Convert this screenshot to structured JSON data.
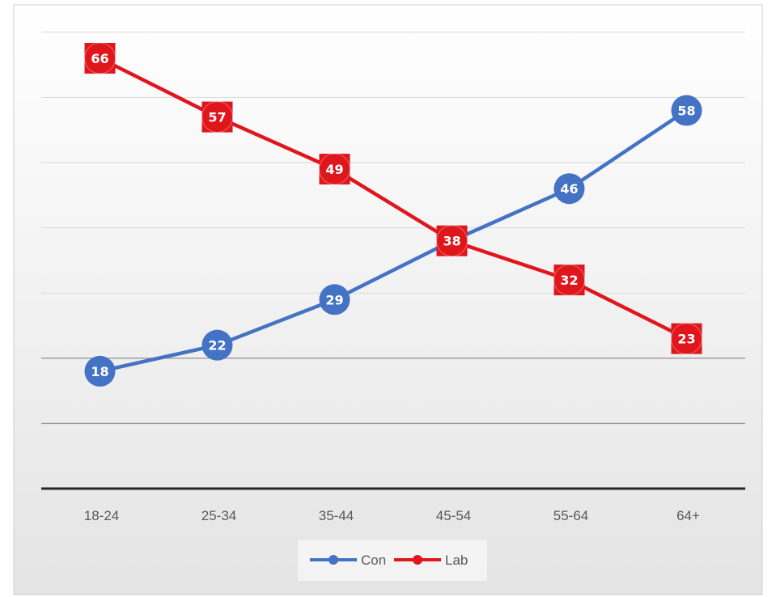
{
  "chart_data": {
    "type": "line",
    "categories": [
      "18-24",
      "25-34",
      "35-44",
      "45-54",
      "55-64",
      "64+"
    ],
    "series": [
      {
        "name": "Con",
        "color": "#4472c4",
        "marker": "circle",
        "values": [
          18,
          22,
          29,
          38,
          46,
          58
        ]
      },
      {
        "name": "Lab",
        "color": "#e0161d",
        "marker": "square",
        "values": [
          66,
          57,
          49,
          38,
          32,
          23
        ]
      }
    ],
    "ylim": [
      0,
      70
    ],
    "grid": true,
    "y_tick_labels": false,
    "legend": "bottom",
    "data_labels": true
  }
}
